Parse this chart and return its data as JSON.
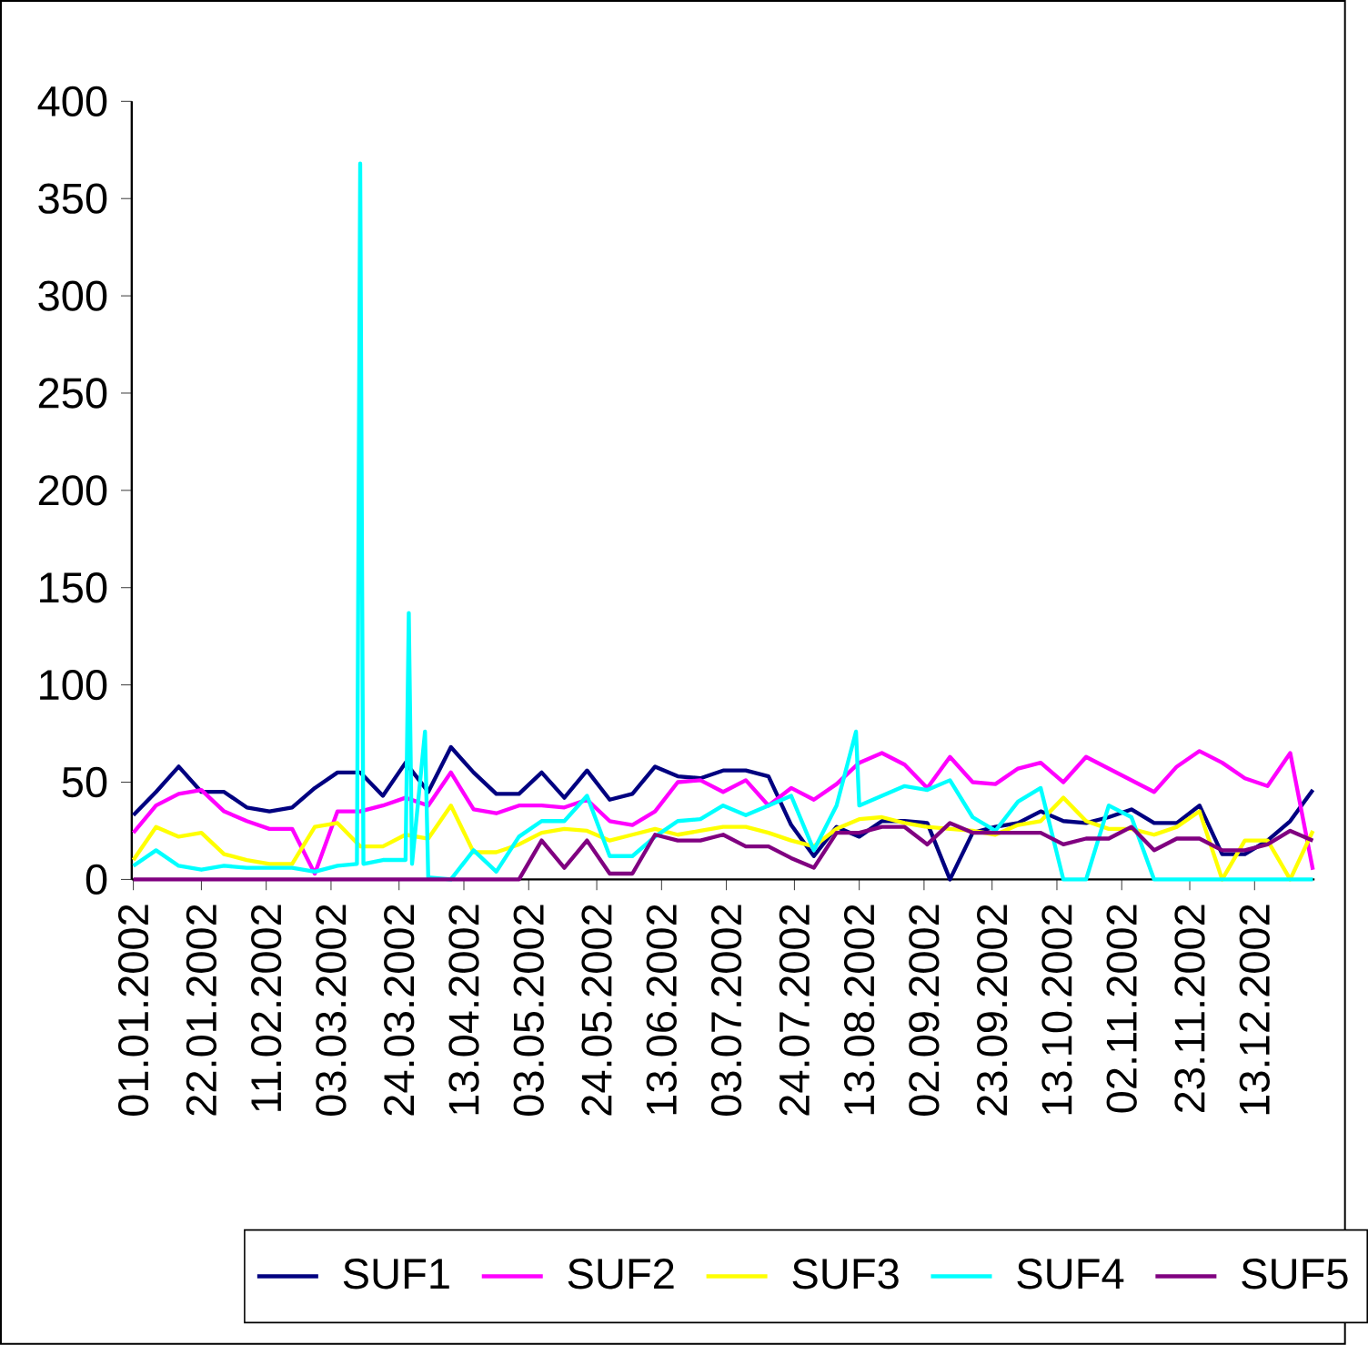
{
  "chart_data": {
    "type": "line",
    "x": [
      "2002-01-01",
      "2002-01-08",
      "2002-01-15",
      "2002-01-22",
      "2002-01-29",
      "2002-02-05",
      "2002-02-12",
      "2002-02-19",
      "2002-02-26",
      "2002-03-05",
      "2002-03-12",
      "2002-03-19",
      "2002-03-26",
      "2002-04-02",
      "2002-04-09",
      "2002-04-16",
      "2002-04-23",
      "2002-04-30",
      "2002-05-07",
      "2002-05-14",
      "2002-05-21",
      "2002-05-28",
      "2002-06-04",
      "2002-06-11",
      "2002-06-18",
      "2002-06-25",
      "2002-07-02",
      "2002-07-09",
      "2002-07-16",
      "2002-07-23",
      "2002-07-30",
      "2002-08-06",
      "2002-08-13",
      "2002-08-20",
      "2002-08-27",
      "2002-09-03",
      "2002-09-10",
      "2002-09-17",
      "2002-09-24",
      "2002-10-01",
      "2002-10-08",
      "2002-10-15",
      "2002-10-22",
      "2002-10-29",
      "2002-11-05",
      "2002-11-12",
      "2002-11-19",
      "2002-11-26",
      "2002-12-03",
      "2002-12-10",
      "2002-12-17",
      "2002-12-24",
      "2002-12-31"
    ],
    "series": [
      {
        "name": "SUF1",
        "color": "#000080",
        "values": [
          33,
          45,
          58,
          45,
          45,
          37,
          35,
          37,
          47,
          55,
          55,
          43,
          60,
          45,
          68,
          55,
          44,
          44,
          55,
          42,
          56,
          41,
          44,
          58,
          53,
          52,
          56,
          56,
          53,
          28,
          12,
          27,
          22,
          30,
          30,
          29,
          0,
          24,
          27,
          29,
          35,
          30,
          29,
          32,
          36,
          29,
          29,
          38,
          13,
          13,
          20,
          30,
          46
        ]
      },
      {
        "name": "SUF2",
        "color": "#ff00ff",
        "values": [
          24,
          38,
          44,
          46,
          35,
          30,
          26,
          26,
          3,
          35,
          35,
          38,
          42,
          38,
          55,
          36,
          34,
          38,
          38,
          37,
          41,
          30,
          28,
          35,
          50,
          51,
          45,
          51,
          38,
          47,
          41,
          49,
          60,
          65,
          59,
          47,
          63,
          50,
          49,
          57,
          60,
          50,
          63,
          57,
          51,
          45,
          58,
          66,
          60,
          52,
          48,
          65,
          5
        ]
      },
      {
        "name": "SUF3",
        "color": "#ffff00",
        "values": [
          10,
          27,
          22,
          24,
          13,
          10,
          8,
          8,
          27,
          29,
          17,
          17,
          23,
          21,
          38,
          14,
          14,
          18,
          24,
          26,
          25,
          20,
          23,
          26,
          23,
          25,
          27,
          27,
          24,
          20,
          17,
          26,
          31,
          32,
          29,
          27,
          26,
          25,
          23,
          28,
          30,
          42,
          30,
          26,
          26,
          23,
          27,
          35,
          0,
          20,
          20,
          0,
          25
        ]
      },
      {
        "name": "SUF4",
        "color": "#00ffff",
        "x": [
          "2002-01-01",
          "2002-01-08",
          "2002-01-15",
          "2002-01-22",
          "2002-01-29",
          "2002-02-05",
          "2002-02-12",
          "2002-02-19",
          "2002-02-26",
          "2002-03-05",
          "2002-03-11",
          "2002-03-12",
          "2002-03-13",
          "2002-03-19",
          "2002-03-26",
          "2002-03-27",
          "2002-03-28",
          "2002-04-01",
          "2002-04-02",
          "2002-04-09",
          "2002-04-16",
          "2002-04-23",
          "2002-04-30",
          "2002-05-07",
          "2002-05-14",
          "2002-05-21",
          "2002-05-28",
          "2002-06-04",
          "2002-06-11",
          "2002-06-18",
          "2002-06-25",
          "2002-07-02",
          "2002-07-09",
          "2002-07-16",
          "2002-07-23",
          "2002-07-30",
          "2002-08-06",
          "2002-08-12",
          "2002-08-13",
          "2002-08-20",
          "2002-08-27",
          "2002-09-03",
          "2002-09-10",
          "2002-09-17",
          "2002-09-24",
          "2002-10-01",
          "2002-10-08",
          "2002-10-15",
          "2002-10-22",
          "2002-10-29",
          "2002-11-05",
          "2002-11-12",
          "2002-11-19",
          "2002-11-26",
          "2002-12-03",
          "2002-12-10",
          "2002-12-17",
          "2002-12-24",
          "2002-12-31"
        ],
        "values": [
          7,
          15,
          7,
          5,
          7,
          6,
          6,
          6,
          4,
          7,
          8,
          368,
          8,
          10,
          10,
          137,
          8,
          76,
          1,
          0,
          15,
          4,
          22,
          30,
          30,
          43,
          12,
          12,
          22,
          30,
          31,
          38,
          33,
          38,
          43,
          15,
          38,
          76,
          38,
          43,
          48,
          46,
          51,
          32,
          25,
          40,
          47,
          0,
          0,
          38,
          32,
          0,
          0,
          0,
          0,
          0,
          0,
          0,
          0
        ]
      },
      {
        "name": "SUF5",
        "color": "#800080",
        "values": [
          0,
          0,
          0,
          0,
          0,
          0,
          0,
          0,
          0,
          0,
          0,
          0,
          0,
          0,
          0,
          0,
          0,
          0,
          20,
          6,
          20,
          3,
          3,
          23,
          20,
          20,
          23,
          17,
          17,
          11,
          6,
          24,
          24,
          27,
          27,
          18,
          29,
          24,
          24,
          24,
          24,
          18,
          21,
          21,
          27,
          15,
          21,
          21,
          15,
          15,
          18,
          25,
          20
        ]
      }
    ],
    "xlim": [
      "2002-01-01",
      "2002-12-31"
    ],
    "xticks": [
      {
        "value": "2002-01-01",
        "label": "01.01.2002"
      },
      {
        "value": "2002-01-22",
        "label": "22.01.2002"
      },
      {
        "value": "2002-02-11",
        "label": "11.02.2002"
      },
      {
        "value": "2002-03-03",
        "label": "03.03.2002"
      },
      {
        "value": "2002-03-24",
        "label": "24.03.2002"
      },
      {
        "value": "2002-04-13",
        "label": "13.04.2002"
      },
      {
        "value": "2002-05-03",
        "label": "03.05.2002"
      },
      {
        "value": "2002-05-24",
        "label": "24.05.2002"
      },
      {
        "value": "2002-06-13",
        "label": "13.06.2002"
      },
      {
        "value": "2002-07-03",
        "label": "03.07.2002"
      },
      {
        "value": "2002-07-24",
        "label": "24.07.2002"
      },
      {
        "value": "2002-08-13",
        "label": "13.08.2002"
      },
      {
        "value": "2002-09-02",
        "label": "02.09.2002"
      },
      {
        "value": "2002-09-23",
        "label": "23.09.2002"
      },
      {
        "value": "2002-10-13",
        "label": "13.10.2002"
      },
      {
        "value": "2002-11-02",
        "label": "02.11.2002"
      },
      {
        "value": "2002-11-23",
        "label": "23.11.2002"
      },
      {
        "value": "2002-12-13",
        "label": "13.12.2002"
      }
    ],
    "ylim": [
      0,
      400
    ],
    "yticks": [
      0,
      50,
      100,
      150,
      200,
      250,
      300,
      350,
      400
    ],
    "grid": false,
    "legend": "bottom"
  }
}
